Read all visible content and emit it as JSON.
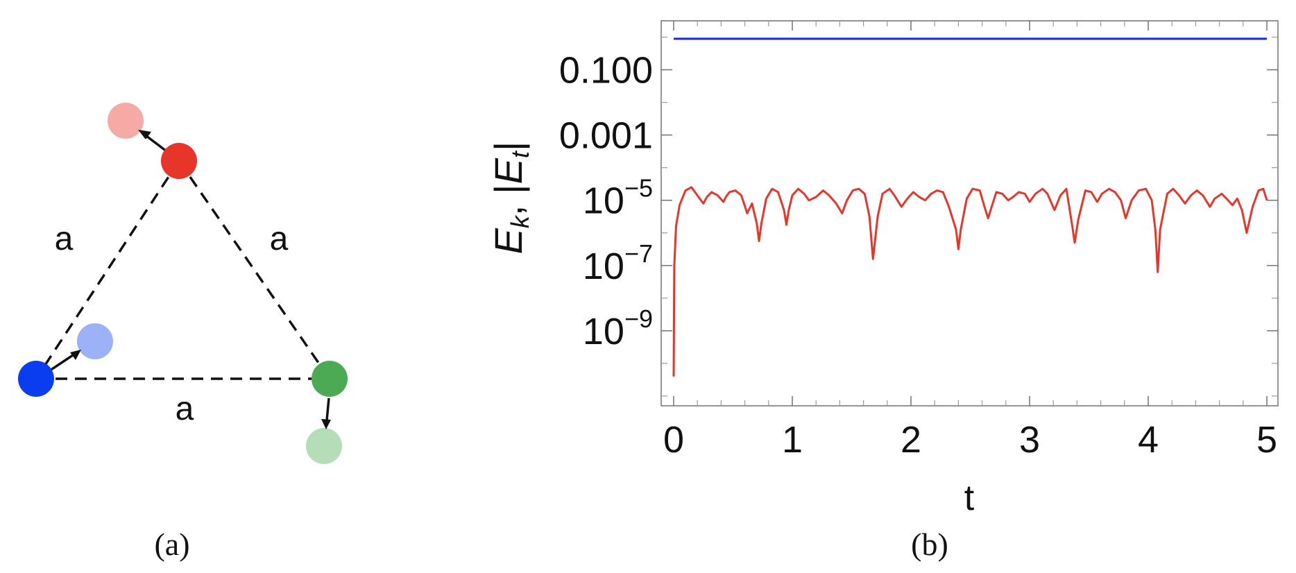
{
  "panel_a": {
    "caption": "(a)",
    "edge_labels": [
      "a",
      "a",
      "a"
    ],
    "particle_colors": {
      "red": "#e8352a",
      "red_ghost": "#f5aaa6",
      "blue": "#0a3cf0",
      "blue_ghost": "#9db1f8",
      "green": "#4caa55",
      "green_ghost": "#b4ddb8"
    }
  },
  "panel_b": {
    "caption": "(b)",
    "chart_data": {
      "type": "line",
      "xlabel": "t",
      "ylabel_main": "E",
      "ylabel_sub1": "k",
      "ylabel_sep": ", |",
      "ylabel_sub2": "t",
      "ylabel_end": "|",
      "yscale": "log",
      "xlim": [
        0,
        5
      ],
      "ylim_log10": [
        -11.3,
        0.5
      ],
      "xticks": [
        {
          "value": 0,
          "label": "0"
        },
        {
          "value": 1,
          "label": "1"
        },
        {
          "value": 2,
          "label": "2"
        },
        {
          "value": 3,
          "label": "3"
        },
        {
          "value": 4,
          "label": "4"
        },
        {
          "value": 5,
          "label": "5"
        }
      ],
      "yticks": [
        {
          "log10": -1,
          "label": "0.100",
          "kind": "plain"
        },
        {
          "log10": -3,
          "label": "0.001",
          "kind": "plain"
        },
        {
          "log10": -5,
          "base": "10",
          "exp": "−5",
          "kind": "pow"
        },
        {
          "log10": -7,
          "base": "10",
          "exp": "−7",
          "kind": "pow"
        },
        {
          "log10": -9,
          "base": "10",
          "exp": "−9",
          "kind": "pow"
        }
      ],
      "series": [
        {
          "color": "#1428e6",
          "x": [
            0,
            5
          ],
          "log10_y": [
            -0.05,
            -0.05
          ]
        },
        {
          "color": "#e8352a",
          "x": [
            0,
            0.005,
            0.02,
            0.05,
            0.1,
            0.15,
            0.17,
            0.22,
            0.25,
            0.28,
            0.32,
            0.37,
            0.42,
            0.44,
            0.47,
            0.52,
            0.57,
            0.62,
            0.66,
            0.7,
            0.72,
            0.74,
            0.78,
            0.83,
            0.88,
            0.93,
            0.95,
            0.97,
            1.0,
            1.05,
            1.1,
            1.14,
            1.2,
            1.26,
            1.31,
            1.37,
            1.42,
            1.46,
            1.51,
            1.56,
            1.61,
            1.65,
            1.68,
            1.72,
            1.76,
            1.82,
            1.86,
            1.92,
            1.97,
            2.02,
            2.07,
            2.12,
            2.17,
            2.22,
            2.27,
            2.32,
            2.38,
            2.4,
            2.42,
            2.47,
            2.52,
            2.58,
            2.62,
            2.65,
            2.68,
            2.72,
            2.77,
            2.82,
            2.86,
            2.91,
            2.96,
            3.0,
            3.05,
            3.11,
            3.15,
            3.21,
            3.26,
            3.31,
            3.36,
            3.38,
            3.41,
            3.47,
            3.52,
            3.57,
            3.61,
            3.67,
            3.72,
            3.77,
            3.81,
            3.86,
            3.92,
            3.98,
            4.03,
            4.06,
            4.08,
            4.1,
            4.16,
            4.21,
            4.26,
            4.31,
            4.36,
            4.41,
            4.46,
            4.52,
            4.56,
            4.62,
            4.66,
            4.71,
            4.75,
            4.79,
            4.83,
            4.88,
            4.93,
            4.97,
            5.0
          ],
          "log10_y": [
            -10.4,
            -7.0,
            -5.8,
            -5.15,
            -4.7,
            -4.6,
            -4.7,
            -4.95,
            -5.1,
            -4.9,
            -4.75,
            -4.85,
            -5.05,
            -4.9,
            -4.75,
            -4.7,
            -4.85,
            -5.4,
            -5.1,
            -5.7,
            -6.25,
            -5.7,
            -4.95,
            -4.65,
            -4.75,
            -5.3,
            -5.75,
            -5.3,
            -4.85,
            -4.65,
            -4.8,
            -5.0,
            -4.9,
            -4.7,
            -4.85,
            -5.1,
            -5.4,
            -5.0,
            -4.7,
            -4.65,
            -4.8,
            -5.5,
            -6.8,
            -5.5,
            -4.8,
            -4.65,
            -4.85,
            -5.2,
            -4.95,
            -4.75,
            -4.9,
            -5.0,
            -4.8,
            -4.7,
            -4.75,
            -5.2,
            -5.9,
            -6.5,
            -5.9,
            -4.95,
            -4.65,
            -4.7,
            -5.2,
            -5.55,
            -5.2,
            -4.75,
            -4.8,
            -5.0,
            -4.9,
            -4.75,
            -4.8,
            -5.05,
            -4.8,
            -4.65,
            -4.8,
            -5.3,
            -4.85,
            -4.65,
            -5.8,
            -6.3,
            -5.6,
            -4.7,
            -4.75,
            -5.05,
            -4.8,
            -4.65,
            -4.75,
            -5.0,
            -5.55,
            -5.0,
            -4.7,
            -4.65,
            -5.0,
            -5.9,
            -7.2,
            -5.9,
            -4.8,
            -4.65,
            -4.85,
            -5.1,
            -4.85,
            -4.7,
            -4.85,
            -5.2,
            -4.95,
            -4.8,
            -4.95,
            -5.15,
            -4.95,
            -5.3,
            -6.0,
            -5.2,
            -4.7,
            -4.65,
            -5.0
          ]
        }
      ]
    }
  }
}
